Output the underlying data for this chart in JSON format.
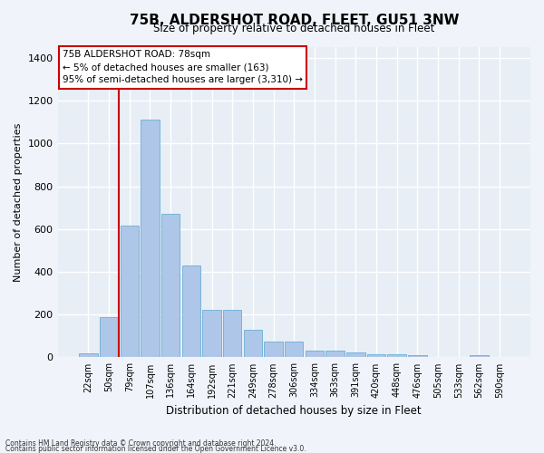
{
  "title": "75B, ALDERSHOT ROAD, FLEET, GU51 3NW",
  "subtitle": "Size of property relative to detached houses in Fleet",
  "xlabel": "Distribution of detached houses by size in Fleet",
  "ylabel": "Number of detached properties",
  "bar_color": "#aec6e8",
  "bar_edge_color": "#6baed6",
  "background_color": "#e8eef5",
  "grid_color": "#ffffff",
  "fig_background": "#f0f4fa",
  "bin_labels": [
    "22sqm",
    "50sqm",
    "79sqm",
    "107sqm",
    "136sqm",
    "164sqm",
    "192sqm",
    "221sqm",
    "249sqm",
    "278sqm",
    "306sqm",
    "334sqm",
    "363sqm",
    "391sqm",
    "420sqm",
    "448sqm",
    "476sqm",
    "505sqm",
    "533sqm",
    "562sqm",
    "590sqm"
  ],
  "bar_values": [
    20,
    190,
    615,
    1110,
    670,
    430,
    220,
    220,
    130,
    75,
    75,
    30,
    30,
    25,
    15,
    15,
    10,
    0,
    0,
    10,
    0
  ],
  "ylim": [
    0,
    1450
  ],
  "yticks": [
    0,
    200,
    400,
    600,
    800,
    1000,
    1200,
    1400
  ],
  "vline_color": "#cc0000",
  "annotation_title": "75B ALDERSHOT ROAD: 78sqm",
  "annotation_line1": "← 5% of detached houses are smaller (163)",
  "annotation_line2": "95% of semi-detached houses are larger (3,310) →",
  "annotation_box_color": "#cc0000",
  "footnote1": "Contains HM Land Registry data © Crown copyright and database right 2024.",
  "footnote2": "Contains public sector information licensed under the Open Government Licence v3.0."
}
